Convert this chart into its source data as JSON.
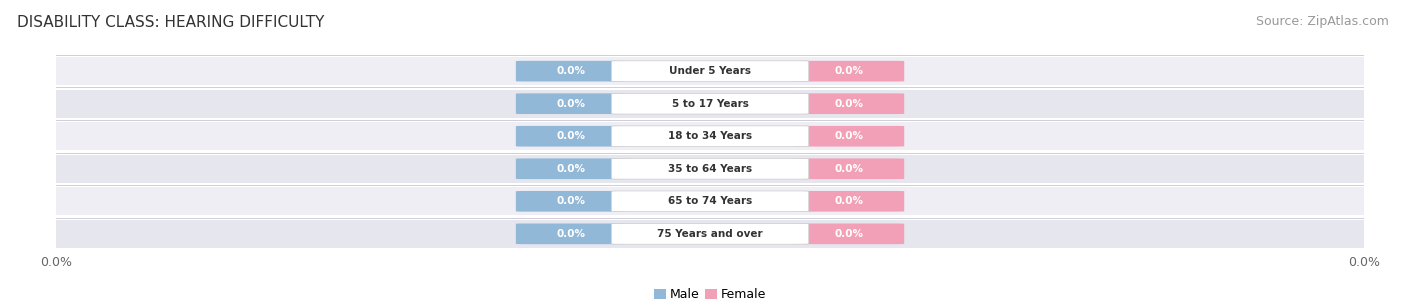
{
  "title": "DISABILITY CLASS: HEARING DIFFICULTY",
  "source": "Source: ZipAtlas.com",
  "categories": [
    "Under 5 Years",
    "5 to 17 Years",
    "18 to 34 Years",
    "35 to 64 Years",
    "65 to 74 Years",
    "75 Years and over"
  ],
  "male_values": [
    0.0,
    0.0,
    0.0,
    0.0,
    0.0,
    0.0
  ],
  "female_values": [
    0.0,
    0.0,
    0.0,
    0.0,
    0.0,
    0.0
  ],
  "male_color": "#92b8d8",
  "female_color": "#f2a0b8",
  "male_label": "Male",
  "female_label": "Female",
  "row_colors": [
    "#eeeef4",
    "#e6e6ee"
  ],
  "title_fontsize": 11,
  "source_fontsize": 9,
  "tick_label": "0.0%",
  "bg_color": "#ffffff",
  "value_label": "0.0%"
}
